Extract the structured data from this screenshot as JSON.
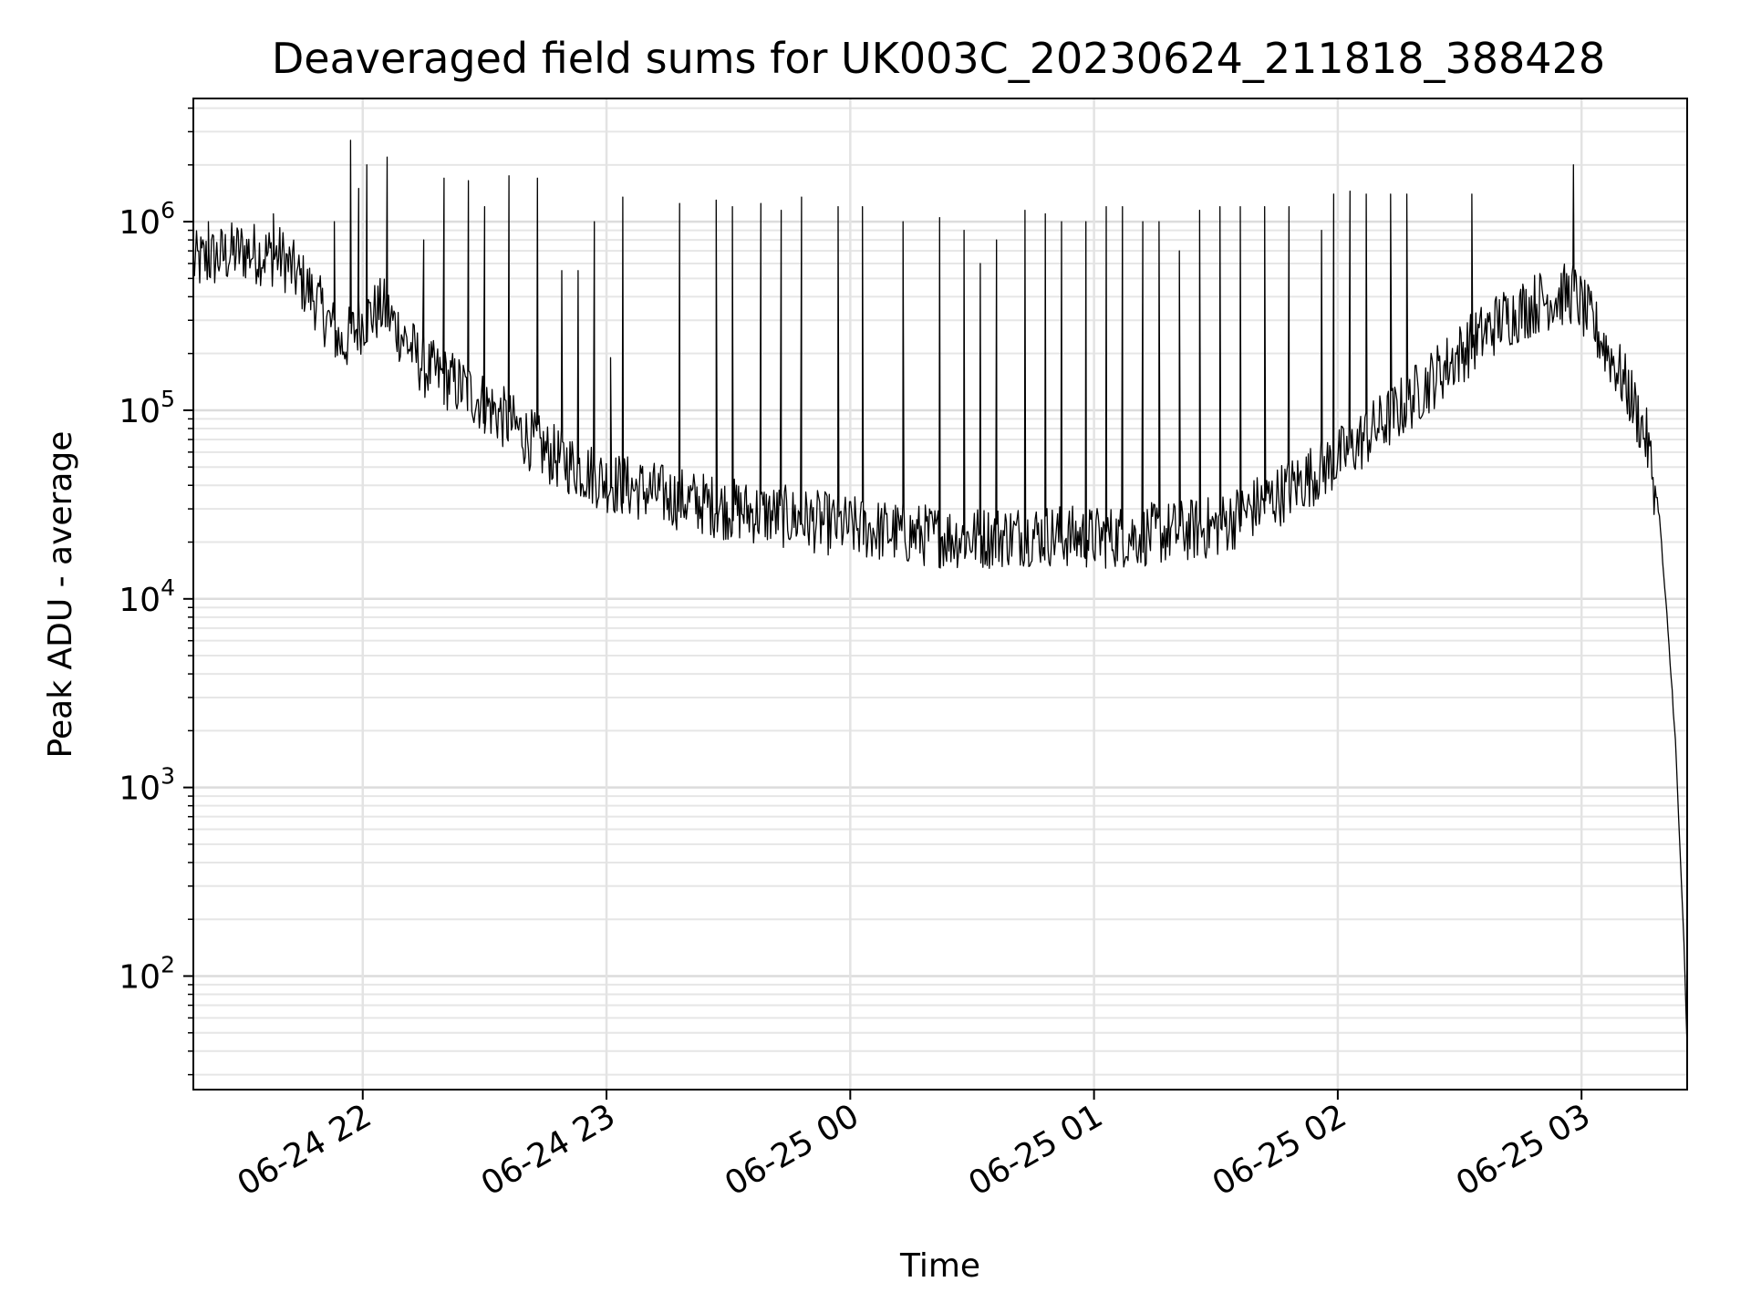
{
  "chart_data": {
    "type": "line",
    "title": "Deaveraged field sums for UK003C_20230624_211818_388428",
    "xlabel": "Time",
    "ylabel": "Peak ADU - average",
    "yscale": "log",
    "grid": true,
    "xlim": [
      "2023-06-24 21:18:18",
      "2023-06-25 03:26:00"
    ],
    "ylim": [
      25,
      4500000
    ],
    "x_ticks": [
      {
        "value": "2023-06-24 22:00",
        "label": "06-24 22"
      },
      {
        "value": "2023-06-24 23:00",
        "label": "06-24 23"
      },
      {
        "value": "2023-06-25 00:00",
        "label": "06-25 00"
      },
      {
        "value": "2023-06-25 01:00",
        "label": "06-25 01"
      },
      {
        "value": "2023-06-25 02:00",
        "label": "06-25 02"
      },
      {
        "value": "2023-06-25 03:00",
        "label": "06-25 03"
      }
    ],
    "y_ticks": [
      {
        "value": 100,
        "base": "10",
        "exp": "2"
      },
      {
        "value": 1000,
        "base": "10",
        "exp": "3"
      },
      {
        "value": 10000,
        "base": "10",
        "exp": "4"
      },
      {
        "value": 100000,
        "base": "10",
        "exp": "5"
      },
      {
        "value": 1000000,
        "base": "10",
        "exp": "6"
      }
    ],
    "series_color": "#000000",
    "series": [
      {
        "baseline": {
          "x": [
            "2023-06-24 21:18:18",
            "2023-06-24 21:30",
            "2023-06-24 21:40",
            "2023-06-24 21:48",
            "2023-06-24 21:55",
            "2023-06-24 22:00",
            "2023-06-24 22:05",
            "2023-06-24 22:15",
            "2023-06-24 22:25",
            "2023-06-24 22:35",
            "2023-06-24 22:45",
            "2023-06-24 23:00",
            "2023-06-24 23:15",
            "2023-06-24 23:30",
            "2023-06-24 23:45",
            "2023-06-25 00:00",
            "2023-06-25 00:15",
            "2023-06-25 00:30",
            "2023-06-25 00:45",
            "2023-06-25 01:00",
            "2023-06-25 01:15",
            "2023-06-25 01:30",
            "2023-06-25 01:45",
            "2023-06-25 02:00",
            "2023-06-25 02:15",
            "2023-06-25 02:30",
            "2023-06-25 02:40",
            "2023-06-25 02:50",
            "2023-06-25 02:58",
            "2023-06-25 03:03",
            "2023-06-25 03:08",
            "2023-06-25 03:12",
            "2023-06-25 03:16",
            "2023-06-25 03:19",
            "2023-06-25 03:21",
            "2023-06-25 03:23",
            "2023-06-25 03:24",
            "2023-06-25 03:25",
            "2023-06-25 03:26"
          ],
          "y": [
            600000,
            700000,
            650000,
            400000,
            220000,
            300000,
            350000,
            170000,
            130000,
            90000,
            60000,
            42000,
            35000,
            30000,
            27000,
            24000,
            22000,
            21000,
            22000,
            21000,
            22000,
            24000,
            35000,
            55000,
            100000,
            200000,
            300000,
            380000,
            420000,
            280000,
            180000,
            120000,
            70000,
            30000,
            8000,
            2000,
            600,
            200,
            40
          ]
        },
        "spikes": {
          "x": [
            "2023-06-24 21:22",
            "2023-06-24 21:38",
            "2023-06-24 21:53",
            "2023-06-24 21:57",
            "2023-06-24 21:59",
            "2023-06-24 22:01",
            "2023-06-24 22:06",
            "2023-06-24 22:15",
            "2023-06-24 22:20",
            "2023-06-24 22:26",
            "2023-06-24 22:30",
            "2023-06-24 22:36",
            "2023-06-24 22:43",
            "2023-06-24 22:49",
            "2023-06-24 22:53",
            "2023-06-24 22:57",
            "2023-06-24 23:01",
            "2023-06-24 23:04",
            "2023-06-24 23:18",
            "2023-06-24 23:27",
            "2023-06-24 23:31",
            "2023-06-24 23:38",
            "2023-06-24 23:43",
            "2023-06-24 23:48",
            "2023-06-24 23:57",
            "2023-06-25 00:03",
            "2023-06-25 00:13",
            "2023-06-25 00:22",
            "2023-06-25 00:28",
            "2023-06-25 00:32",
            "2023-06-25 00:36",
            "2023-06-25 00:43",
            "2023-06-25 00:48",
            "2023-06-25 00:52",
            "2023-06-25 00:58",
            "2023-06-25 01:03",
            "2023-06-25 01:07",
            "2023-06-25 01:12",
            "2023-06-25 01:16",
            "2023-06-25 01:21",
            "2023-06-25 01:26",
            "2023-06-25 01:31",
            "2023-06-25 01:36",
            "2023-06-25 01:42",
            "2023-06-25 01:48",
            "2023-06-25 01:56",
            "2023-06-25 01:59",
            "2023-06-25 02:03",
            "2023-06-25 02:07",
            "2023-06-25 02:13",
            "2023-06-25 02:17",
            "2023-06-25 02:33",
            "2023-06-25 02:58"
          ],
          "y": [
            1000000,
            1100000,
            1000000,
            2700000,
            1500000,
            2000000,
            2200000,
            800000,
            1700000,
            1650000,
            1200000,
            1750000,
            1700000,
            550000,
            550000,
            1000000,
            190000,
            1350000,
            1250000,
            1300000,
            1200000,
            1250000,
            1150000,
            1350000,
            1200000,
            1200000,
            1000000,
            1050000,
            900000,
            600000,
            800000,
            1150000,
            1100000,
            1000000,
            1000000,
            1200000,
            1200000,
            1000000,
            1000000,
            700000,
            1150000,
            1200000,
            1200000,
            1200000,
            1200000,
            900000,
            1400000,
            1450000,
            1400000,
            1400000,
            1400000,
            1400000,
            2000000
          ]
        }
      }
    ]
  }
}
